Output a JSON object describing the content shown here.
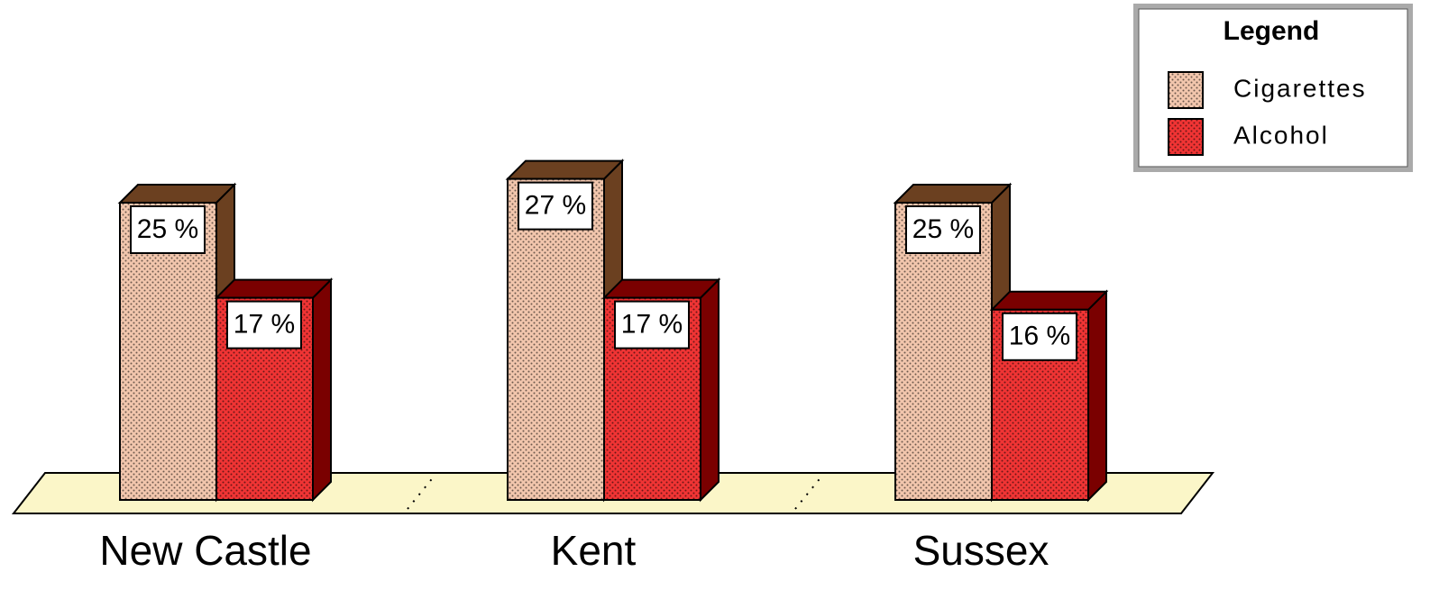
{
  "chart_data": {
    "type": "bar3d",
    "categories": [
      "New Castle",
      "Kent",
      "Sussex"
    ],
    "series": [
      {
        "name": "Cigarettes",
        "color": "#f2c6ad",
        "top_color": "#6b4020",
        "values": [
          25,
          27,
          25
        ],
        "value_labels": [
          "25 %",
          "27 %",
          "25 %"
        ]
      },
      {
        "name": "Alcohol",
        "color": "#f03434",
        "top_color": "#7a0000",
        "values": [
          17,
          17,
          16
        ],
        "value_labels": [
          "17 %",
          "17 %",
          "16 %"
        ]
      }
    ],
    "legend_title": "Legend",
    "legend": "top-right"
  }
}
